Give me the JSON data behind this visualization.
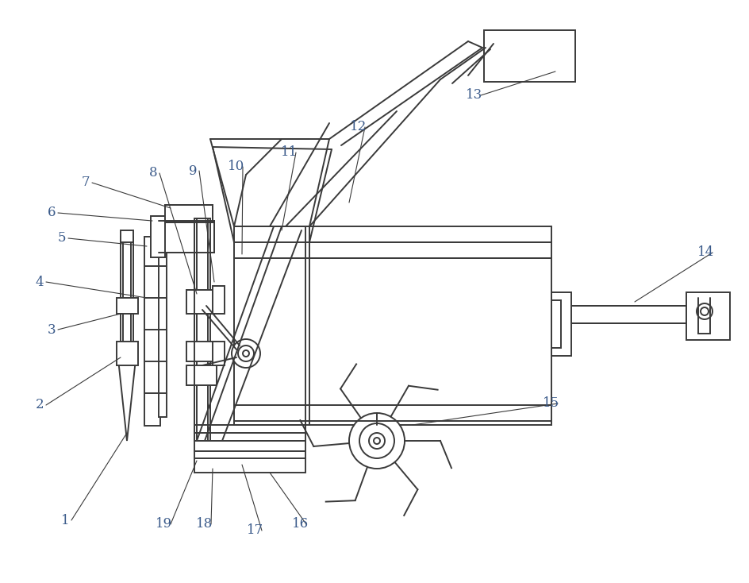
{
  "bg_color": "#ffffff",
  "line_color": "#3a3a3a",
  "line_width": 1.4,
  "label_color": "#3a5a8a",
  "label_fontsize": 12,
  "fig_width": 9.45,
  "fig_height": 7.34
}
